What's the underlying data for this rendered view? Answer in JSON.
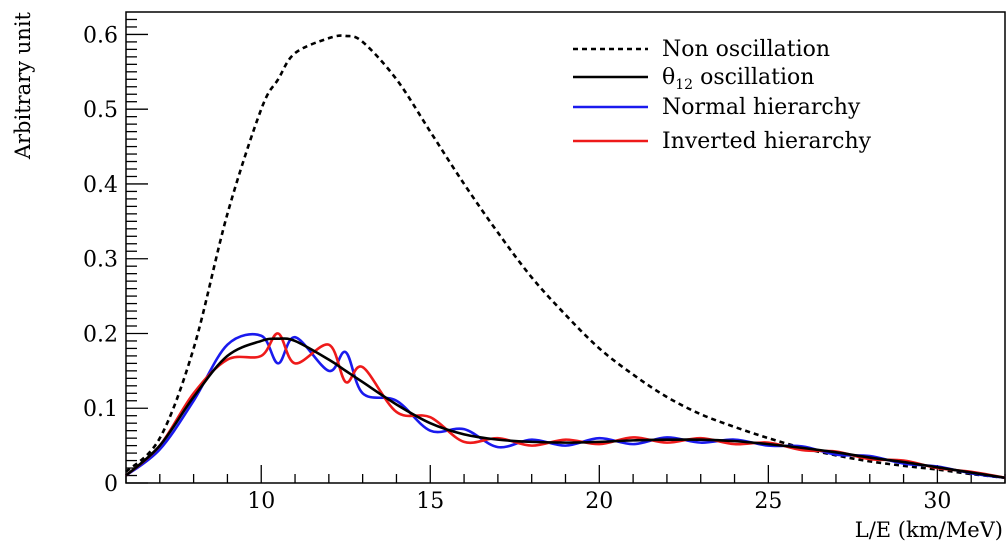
{
  "chart_data": {
    "type": "line",
    "title": "",
    "xlabel": "L/E (km/MeV)",
    "ylabel": "Arbitrary unit",
    "xlim": [
      6,
      32
    ],
    "ylim": [
      0,
      0.63
    ],
    "xticks": [
      10,
      15,
      20,
      25,
      30
    ],
    "yticks": [
      0,
      0.1,
      0.2,
      0.3,
      0.4,
      0.5,
      0.6
    ],
    "ytick_labels": [
      "0",
      "0.1",
      "0.2",
      "0.3",
      "0.4",
      "0.5",
      "0.6"
    ],
    "grid": false,
    "legend_position": "top-right",
    "x": [
      6,
      7,
      8,
      9,
      10,
      10.5,
      11,
      12,
      12.5,
      13,
      14,
      15,
      16,
      17,
      18,
      19,
      20,
      21,
      22,
      23,
      24,
      25,
      26,
      27,
      28,
      29,
      30,
      31,
      32
    ],
    "series": [
      {
        "name": "Non oscillation",
        "style": "dashed",
        "color": "#000000",
        "values": [
          0.015,
          0.06,
          0.18,
          0.36,
          0.5,
          0.54,
          0.575,
          0.595,
          0.598,
          0.59,
          0.54,
          0.47,
          0.4,
          0.335,
          0.275,
          0.225,
          0.18,
          0.145,
          0.115,
          0.092,
          0.075,
          0.06,
          0.047,
          0.037,
          0.029,
          0.023,
          0.018,
          0.012,
          0.007
        ]
      },
      {
        "name": "θ12 oscillation",
        "style": "solid",
        "color": "#000000",
        "values": [
          0.01,
          0.05,
          0.115,
          0.17,
          0.19,
          0.193,
          0.19,
          0.165,
          0.15,
          0.135,
          0.105,
          0.08,
          0.065,
          0.058,
          0.055,
          0.054,
          0.055,
          0.057,
          0.058,
          0.058,
          0.056,
          0.052,
          0.047,
          0.041,
          0.034,
          0.028,
          0.021,
          0.014,
          0.007
        ]
      },
      {
        "name": "Normal hierarchy",
        "style": "solid",
        "color": "#1a1aee",
        "values": [
          0.01,
          0.045,
          0.11,
          0.185,
          0.197,
          0.16,
          0.195,
          0.15,
          0.175,
          0.12,
          0.11,
          0.07,
          0.072,
          0.048,
          0.058,
          0.05,
          0.06,
          0.052,
          0.061,
          0.054,
          0.058,
          0.05,
          0.049,
          0.038,
          0.036,
          0.026,
          0.022,
          0.013,
          0.007
        ]
      },
      {
        "name": "Inverted hierarchy",
        "style": "solid",
        "color": "#ee1a1a",
        "values": [
          0.01,
          0.05,
          0.12,
          0.165,
          0.17,
          0.2,
          0.16,
          0.185,
          0.135,
          0.155,
          0.095,
          0.088,
          0.055,
          0.06,
          0.05,
          0.058,
          0.052,
          0.061,
          0.054,
          0.06,
          0.052,
          0.054,
          0.044,
          0.042,
          0.032,
          0.03,
          0.02,
          0.015,
          0.007
        ]
      }
    ]
  }
}
